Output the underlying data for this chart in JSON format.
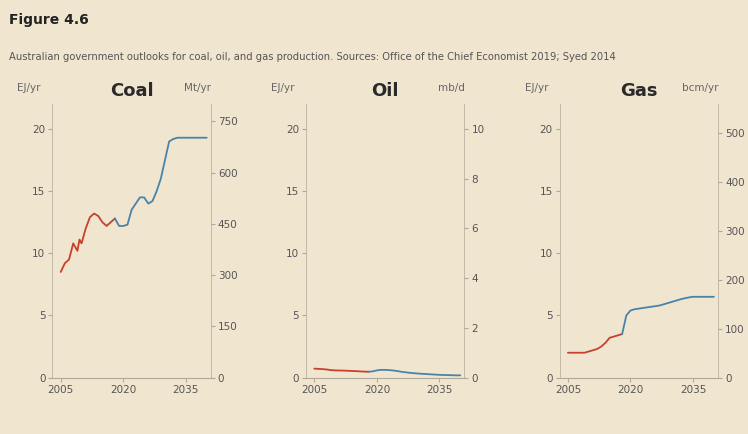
{
  "fig_title": "Figure 4.6",
  "fig_subtitle": "Australian government outlooks for coal, oil, and gas production. Sources: Office of the Chief Economist 2019; Syed 2014",
  "bg_color": "#f0e6d0",
  "panel_bg": "#f0e6d0",
  "red_color": "#c8402a",
  "blue_color": "#4b82a8",
  "panels": [
    {
      "title": "Coal",
      "left_label": "EJ/yr",
      "right_label": "Mt/yr",
      "ylim_left": [
        0,
        22
      ],
      "ylim_right": [
        0,
        800
      ],
      "yticks_left": [
        0,
        5,
        10,
        15,
        20
      ],
      "yticks_right": [
        0,
        150,
        300,
        450,
        600,
        750
      ],
      "historical_x": [
        2005,
        2006,
        2007,
        2008,
        2009,
        2009.5,
        2010,
        2011,
        2012,
        2013,
        2014,
        2015,
        2016,
        2017,
        2018
      ],
      "historical_y": [
        8.5,
        9.2,
        9.5,
        10.8,
        10.2,
        11.1,
        10.8,
        12.0,
        12.9,
        13.2,
        13.0,
        12.5,
        12.2,
        12.5,
        12.8
      ],
      "outlook_x": [
        2018,
        2019,
        2020,
        2021,
        2022,
        2023,
        2024,
        2025,
        2026,
        2027,
        2028,
        2029,
        2030,
        2031,
        2032,
        2033,
        2034,
        2035,
        2036,
        2037,
        2038,
        2039,
        2040
      ],
      "outlook_y": [
        12.8,
        12.2,
        12.2,
        12.3,
        13.5,
        14.0,
        14.5,
        14.5,
        14.0,
        14.2,
        15.0,
        16.0,
        17.5,
        19.0,
        19.2,
        19.3,
        19.3,
        19.3,
        19.3,
        19.3,
        19.3,
        19.3,
        19.3
      ]
    },
    {
      "title": "Oil",
      "left_label": "EJ/yr",
      "right_label": "mb/d",
      "ylim_left": [
        0,
        22
      ],
      "ylim_right": [
        0,
        11
      ],
      "yticks_left": [
        0,
        5,
        10,
        15,
        20
      ],
      "yticks_right": [
        0,
        2,
        4,
        6,
        8,
        10
      ],
      "historical_x": [
        2005,
        2006,
        2007,
        2008,
        2009,
        2010,
        2011,
        2012,
        2013,
        2014,
        2015,
        2016,
        2017,
        2018
      ],
      "historical_y": [
        0.72,
        0.7,
        0.68,
        0.65,
        0.6,
        0.58,
        0.57,
        0.56,
        0.55,
        0.53,
        0.52,
        0.5,
        0.48,
        0.47
      ],
      "outlook_x": [
        2018,
        2019,
        2020,
        2021,
        2022,
        2023,
        2024,
        2025,
        2026,
        2027,
        2028,
        2029,
        2030,
        2031,
        2032,
        2033,
        2034,
        2035,
        2036,
        2037,
        2038,
        2039,
        2040
      ],
      "outlook_y": [
        0.47,
        0.5,
        0.58,
        0.62,
        0.62,
        0.6,
        0.57,
        0.52,
        0.46,
        0.42,
        0.38,
        0.35,
        0.32,
        0.3,
        0.28,
        0.26,
        0.24,
        0.22,
        0.21,
        0.2,
        0.19,
        0.18,
        0.18
      ]
    },
    {
      "title": "Gas",
      "left_label": "EJ/yr",
      "right_label": "bcm/yr",
      "ylim_left": [
        0,
        22
      ],
      "ylim_right": [
        0,
        560
      ],
      "yticks_left": [
        0,
        5,
        10,
        15,
        20
      ],
      "yticks_right": [
        0,
        100,
        200,
        300,
        400,
        500
      ],
      "historical_x": [
        2005,
        2006,
        2007,
        2008,
        2009,
        2010,
        2011,
        2012,
        2013,
        2014,
        2015,
        2016,
        2017,
        2018
      ],
      "historical_y": [
        2.0,
        2.0,
        2.0,
        2.0,
        2.0,
        2.1,
        2.2,
        2.3,
        2.5,
        2.8,
        3.2,
        3.3,
        3.4,
        3.5
      ],
      "outlook_x": [
        2018,
        2019,
        2020,
        2021,
        2022,
        2023,
        2024,
        2025,
        2026,
        2027,
        2028,
        2029,
        2030,
        2031,
        2032,
        2033,
        2034,
        2035,
        2036,
        2037,
        2038,
        2039,
        2040
      ],
      "outlook_y": [
        3.5,
        5.0,
        5.4,
        5.5,
        5.55,
        5.6,
        5.65,
        5.7,
        5.75,
        5.8,
        5.9,
        6.0,
        6.1,
        6.2,
        6.3,
        6.38,
        6.45,
        6.5,
        6.5,
        6.5,
        6.5,
        6.5,
        6.5
      ]
    }
  ]
}
